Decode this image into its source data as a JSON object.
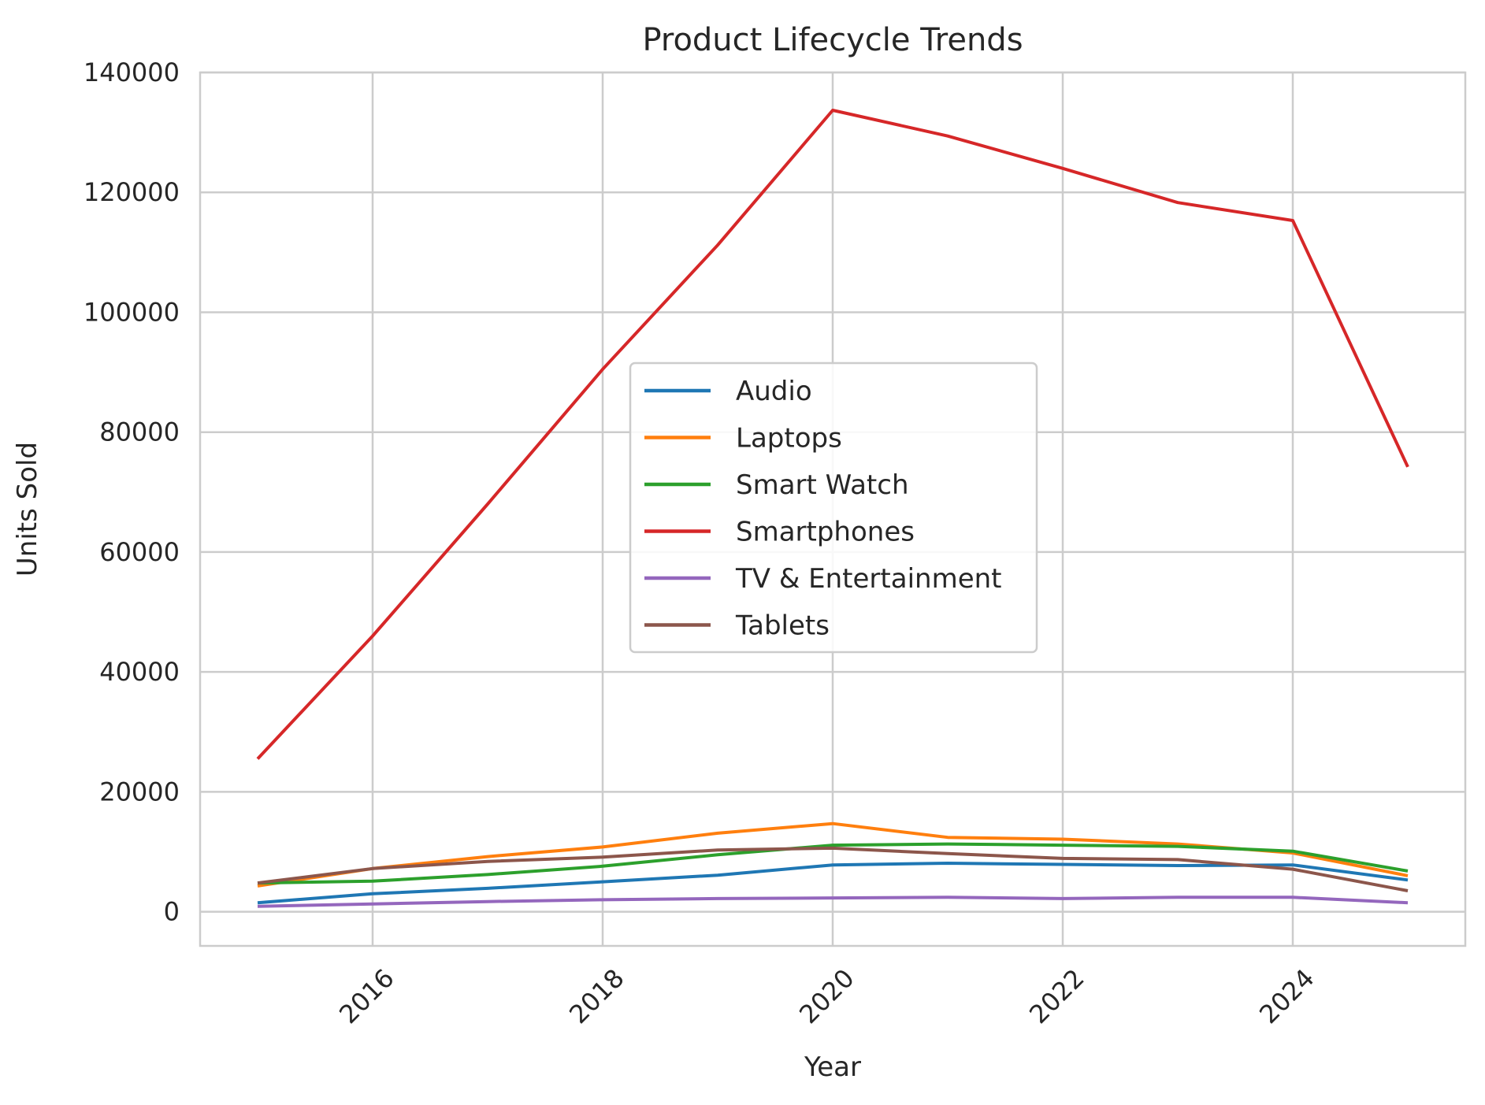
{
  "chart_data": {
    "type": "line",
    "title": "Product Lifecycle Trends",
    "xlabel": "Year",
    "ylabel": "Units Sold",
    "x": [
      2015,
      2016,
      2017,
      2018,
      2019,
      2020,
      2021,
      2022,
      2023,
      2024,
      2025
    ],
    "xlim": [
      2014.5,
      2025.5
    ],
    "ylim": [
      -5700,
      140000
    ],
    "xticks": [
      2016,
      2018,
      2020,
      2022,
      2024
    ],
    "yticks": [
      0,
      20000,
      40000,
      60000,
      80000,
      100000,
      120000,
      140000
    ],
    "xtick_labels": [
      "2016",
      "2018",
      "2020",
      "2022",
      "2024"
    ],
    "ytick_labels": [
      "0",
      "20000",
      "40000",
      "60000",
      "80000",
      "100000",
      "120000",
      "140000"
    ],
    "grid": true,
    "legend_position": "center",
    "series": [
      {
        "name": "Audio",
        "color": "#1f77b4",
        "values": [
          1500,
          3000,
          3900,
          5000,
          6100,
          7800,
          8100,
          7900,
          7700,
          7800,
          5300
        ]
      },
      {
        "name": "Laptops",
        "color": "#ff7f0e",
        "values": [
          4300,
          7200,
          9200,
          10800,
          13100,
          14700,
          12400,
          12100,
          11300,
          9800,
          6000
        ]
      },
      {
        "name": "Smart Watch",
        "color": "#2ca02c",
        "values": [
          4800,
          5100,
          6200,
          7600,
          9500,
          11100,
          11300,
          11100,
          10900,
          10100,
          6800
        ]
      },
      {
        "name": "Smartphones",
        "color": "#d62728",
        "values": [
          25500,
          46000,
          68000,
          90500,
          111200,
          133700,
          129400,
          124000,
          118300,
          115300,
          74200
        ]
      },
      {
        "name": "TV & Entertainment",
        "color": "#9467bd",
        "values": [
          900,
          1300,
          1700,
          2000,
          2200,
          2300,
          2400,
          2200,
          2400,
          2400,
          1500
        ]
      },
      {
        "name": "Tablets",
        "color": "#8c564b",
        "values": [
          4800,
          7200,
          8400,
          9100,
          10300,
          10600,
          9700,
          8900,
          8700,
          7100,
          3500
        ]
      }
    ]
  }
}
